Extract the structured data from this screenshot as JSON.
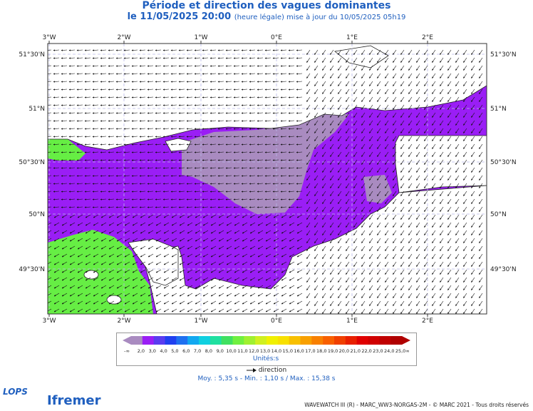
{
  "header": {
    "title": "Période et direction des vagues dominantes",
    "date": "le 11/05/2025 20:00",
    "update_note": "(heure légale) mise à jour du 10/05/2025 05h19"
  },
  "axes": {
    "lon_ticks": [
      "3°W",
      "2°W",
      "1°W",
      "0°E",
      "1°E",
      "2°E"
    ],
    "lat_ticks": [
      "51°30'N",
      "51°N",
      "50°30'N",
      "50°N",
      "49°30'N"
    ]
  },
  "colors": {
    "sea_purple": "#9a1ef5",
    "sea_grey": "#a98bc0",
    "sea_green": "#66ee44",
    "land": "#ffffff",
    "grid": "#b8b8e8"
  },
  "legend": {
    "min_label": "-∞",
    "max_label": "∞",
    "values": [
      "2,0",
      "3,0",
      "4,0",
      "5,0",
      "6,0",
      "7,0",
      "8,0",
      "9,0",
      "10,0",
      "11,0",
      "12,0",
      "13,0",
      "14,0",
      "15,0",
      "16,0",
      "17,0",
      "18,0",
      "19,0",
      "20,0",
      "21,0",
      "22,0",
      "23,0",
      "24,0",
      "25,0"
    ],
    "colors": [
      "#a98bc0",
      "#9a1ef5",
      "#5a3cf0",
      "#2040f0",
      "#1f70f0",
      "#12a8f0",
      "#10d0e0",
      "#20e0a0",
      "#40e060",
      "#70f040",
      "#a0f030",
      "#d0f020",
      "#f0f000",
      "#f8e000",
      "#f8c000",
      "#f8a000",
      "#f88000",
      "#f86000",
      "#f04000",
      "#e82000",
      "#e00000",
      "#d00000",
      "#c00000",
      "#b00000"
    ],
    "units": "Unités:s",
    "direction_label": "direction"
  },
  "stats": {
    "text": "Moy. : 5,35 s  -  Min. : 1,10 s / Max. : 15,38 s"
  },
  "footer": {
    "credit": "WAVEWATCH III (R) - MARC_WW3-NORGAS-2M - © MARC 2021 - Tous droits réservés",
    "logo_lops": "LOPS",
    "logo_ifremer": "Ifremer"
  }
}
